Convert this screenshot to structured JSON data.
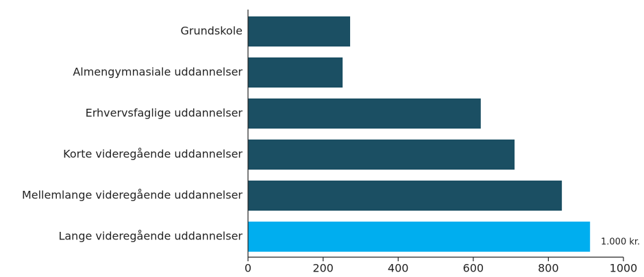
{
  "chart_data": {
    "type": "bar",
    "orientation": "horizontal",
    "categories": [
      "Grundskole",
      "Almengymnasiale uddannelser",
      "Erhvervsfaglige uddannelser",
      "Korte videregående uddannelser",
      "Mellemlange videregående uddannelser",
      "Lange videregående uddannelser"
    ],
    "values": [
      272,
      252,
      620,
      710,
      836,
      911
    ],
    "colors": [
      "#1b4f63",
      "#1b4f63",
      "#1b4f63",
      "#1b4f63",
      "#1b4f63",
      "#00aeef"
    ],
    "x_label": "1.000 kr.",
    "xlim": [
      0,
      1000
    ],
    "xticks": [
      0,
      200,
      400,
      600,
      800,
      1000
    ],
    "grid": false
  }
}
